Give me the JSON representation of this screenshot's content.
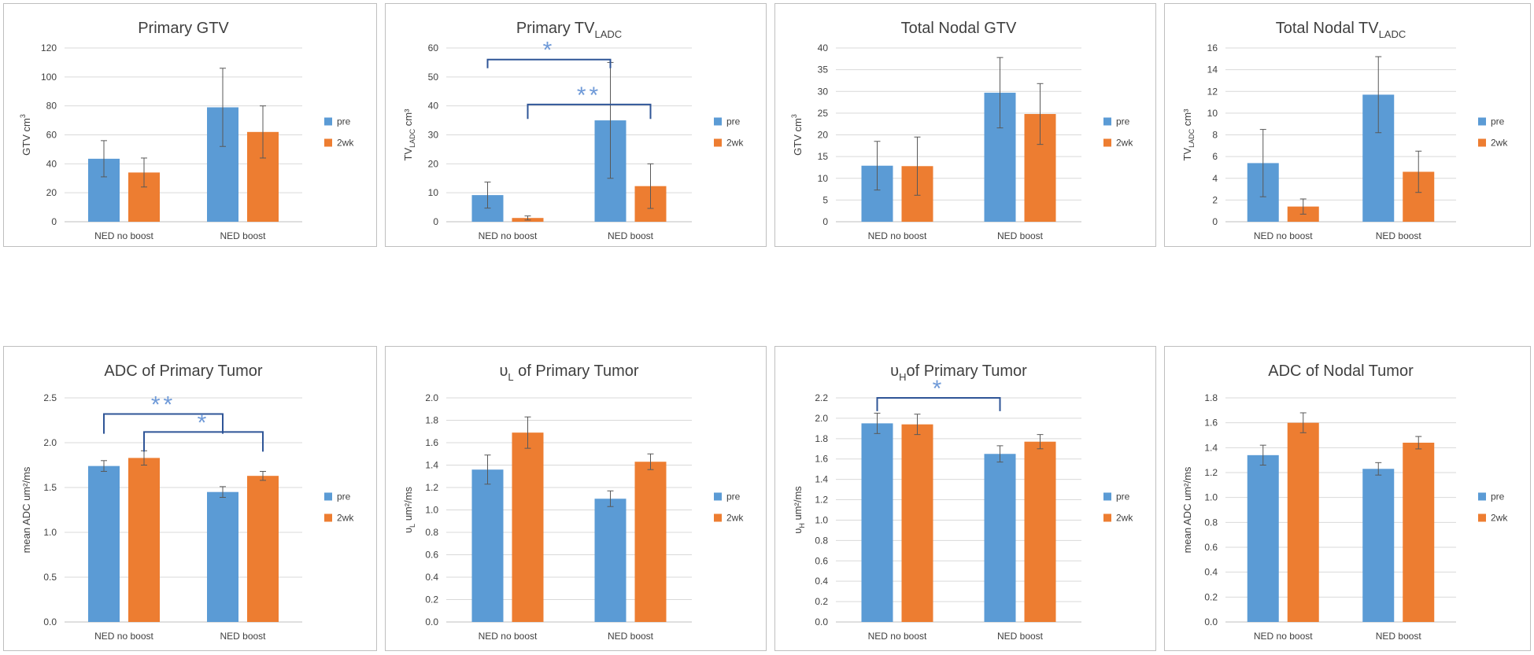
{
  "colors": {
    "pre": "#5B9BD5",
    "two_week": "#ED7D31",
    "bracket": "#2F5597",
    "star": "#6F9AD8",
    "grid": "#D9D9D9",
    "panel_border": "#BFBFBF",
    "axis_text": "#404040"
  },
  "chart_data": [
    {
      "type": "bar",
      "title": {
        "main": "Primary GTV",
        "sub": ""
      },
      "ylabel": {
        "main": "GTV cm",
        "sub": "",
        "sup": "3",
        "tail": ""
      },
      "categories": [
        "NED no boost",
        "NED boost"
      ],
      "series": [
        {
          "name": "pre",
          "values": [
            43.5,
            79
          ],
          "errors": [
            12.5,
            27
          ]
        },
        {
          "name": "2wk",
          "values": [
            34,
            62
          ],
          "errors": [
            10,
            18
          ]
        }
      ],
      "ylim": [
        0,
        120
      ],
      "yticks": [
        0,
        20,
        40,
        60,
        80,
        100,
        120
      ],
      "tick_decimals": 0,
      "legend": "right",
      "brackets": []
    },
    {
      "type": "bar",
      "title": {
        "main": "Primary TV",
        "sub": "LADC"
      },
      "ylabel": {
        "main": "TV",
        "sub": "LADC",
        "sup": "",
        "tail": " cm³"
      },
      "categories": [
        "NED no boost",
        "NED boost"
      ],
      "series": [
        {
          "name": "pre",
          "values": [
            9.2,
            35
          ],
          "errors": [
            4.5,
            20
          ]
        },
        {
          "name": "2wk",
          "values": [
            1.3,
            12.3
          ],
          "errors": [
            0.7,
            7.7
          ]
        }
      ],
      "ylim": [
        0,
        60
      ],
      "yticks": [
        0,
        10,
        20,
        30,
        40,
        50,
        60
      ],
      "tick_decimals": 0,
      "legend": "right",
      "brackets": [
        {
          "from": [
            0,
            "pre"
          ],
          "to": [
            1,
            "pre"
          ],
          "level": 56,
          "drop": 53,
          "stars": "*"
        },
        {
          "from": [
            0,
            "2wk"
          ],
          "to": [
            1,
            "2wk"
          ],
          "level": 40.5,
          "drop": 35.5,
          "stars": "**"
        }
      ]
    },
    {
      "type": "bar",
      "title": {
        "main": "Total Nodal GTV",
        "sub": ""
      },
      "ylabel": {
        "main": "GTV cm",
        "sub": "",
        "sup": "3",
        "tail": ""
      },
      "categories": [
        "NED no boost",
        "NED boost"
      ],
      "series": [
        {
          "name": "pre",
          "values": [
            12.9,
            29.7
          ],
          "errors": [
            5.6,
            8.1
          ]
        },
        {
          "name": "2wk",
          "values": [
            12.8,
            24.8
          ],
          "errors": [
            6.7,
            7
          ]
        }
      ],
      "ylim": [
        0,
        40
      ],
      "yticks": [
        0,
        5,
        10,
        15,
        20,
        25,
        30,
        35,
        40
      ],
      "tick_decimals": 0,
      "legend": "right",
      "brackets": []
    },
    {
      "type": "bar",
      "title": {
        "main": "Total Nodal TV",
        "sub": "LADC"
      },
      "ylabel": {
        "main": "TV",
        "sub": "LADC",
        "sup": "",
        "tail": " cm³"
      },
      "categories": [
        "NED no boost",
        "NED boost"
      ],
      "series": [
        {
          "name": "pre",
          "values": [
            5.4,
            11.7
          ],
          "errors": [
            3.1,
            3.5
          ]
        },
        {
          "name": "2wk",
          "values": [
            1.4,
            4.6
          ],
          "errors": [
            0.7,
            1.9
          ]
        }
      ],
      "ylim": [
        0,
        16
      ],
      "yticks": [
        0,
        2,
        4,
        6,
        8,
        10,
        12,
        14,
        16
      ],
      "tick_decimals": 0,
      "legend": "right",
      "brackets": []
    },
    {
      "type": "bar",
      "title": {
        "main": "ADC of Primary Tumor",
        "sub": ""
      },
      "ylabel": {
        "main": "mean ADC um²/ms",
        "sub": "",
        "sup": "",
        "tail": ""
      },
      "categories": [
        "NED no boost",
        "NED boost"
      ],
      "series": [
        {
          "name": "pre",
          "values": [
            1.74,
            1.45
          ],
          "errors": [
            0.06,
            0.06
          ]
        },
        {
          "name": "2wk",
          "values": [
            1.83,
            1.63
          ],
          "errors": [
            0.08,
            0.05
          ]
        }
      ],
      "ylim": [
        0,
        2.5
      ],
      "yticks": [
        0,
        0.5,
        1,
        1.5,
        2,
        2.5
      ],
      "tick_decimals": 1,
      "legend": "right",
      "brackets": [
        {
          "from": [
            0,
            "pre"
          ],
          "to": [
            1,
            "pre"
          ],
          "level": 2.32,
          "drop": 2.1,
          "stars": "**"
        },
        {
          "from": [
            0,
            "2wk"
          ],
          "to": [
            1,
            "2wk"
          ],
          "level": 2.12,
          "drop": 1.9,
          "stars": "*"
        }
      ]
    },
    {
      "type": "bar",
      "title": {
        "main": "υ",
        "sub": "L",
        "tail": " of Primary Tumor"
      },
      "ylabel": {
        "main": "υ",
        "sub": "L",
        "sup": "",
        "tail": " um²/ms"
      },
      "categories": [
        "NED no boost",
        "NED boost"
      ],
      "series": [
        {
          "name": "pre",
          "values": [
            1.36,
            1.1
          ],
          "errors": [
            0.13,
            0.07
          ]
        },
        {
          "name": "2wk",
          "values": [
            1.69,
            1.43
          ],
          "errors": [
            0.14,
            0.07
          ]
        }
      ],
      "ylim": [
        0,
        2
      ],
      "yticks": [
        0,
        0.2,
        0.4,
        0.6,
        0.8,
        1,
        1.2,
        1.4,
        1.6,
        1.8,
        2
      ],
      "tick_decimals": 1,
      "legend": "right",
      "brackets": []
    },
    {
      "type": "bar",
      "title": {
        "main": "υ",
        "sub": "H",
        "tail": "of Primary Tumor"
      },
      "ylabel": {
        "main": "υ",
        "sub": "H",
        "sup": "",
        "tail": " um²/ms"
      },
      "categories": [
        "NED no boost",
        "NED boost"
      ],
      "series": [
        {
          "name": "pre",
          "values": [
            1.95,
            1.65
          ],
          "errors": [
            0.1,
            0.08
          ]
        },
        {
          "name": "2wk",
          "values": [
            1.94,
            1.77
          ],
          "errors": [
            0.1,
            0.07
          ]
        }
      ],
      "ylim": [
        0,
        2.2
      ],
      "yticks": [
        0,
        0.2,
        0.4,
        0.6,
        0.8,
        1,
        1.2,
        1.4,
        1.6,
        1.8,
        2,
        2.2
      ],
      "tick_decimals": 1,
      "legend": "right",
      "brackets": [
        {
          "from": [
            0,
            "pre"
          ],
          "to": [
            1,
            "pre"
          ],
          "level": 2.2,
          "drop": 2.07,
          "stars": "*"
        }
      ]
    },
    {
      "type": "bar",
      "title": {
        "main": "ADC of Nodal Tumor",
        "sub": ""
      },
      "ylabel": {
        "main": "mean ADC um²/ms",
        "sub": "",
        "sup": "",
        "tail": ""
      },
      "categories": [
        "NED no boost",
        "NED boost"
      ],
      "series": [
        {
          "name": "pre",
          "values": [
            1.34,
            1.23
          ],
          "errors": [
            0.08,
            0.05
          ]
        },
        {
          "name": "2wk",
          "values": [
            1.6,
            1.44
          ],
          "errors": [
            0.08,
            0.05
          ]
        }
      ],
      "ylim": [
        0,
        1.8
      ],
      "yticks": [
        0,
        0.2,
        0.4,
        0.6,
        0.8,
        1,
        1.2,
        1.4,
        1.6,
        1.8
      ],
      "tick_decimals": 1,
      "legend": "right",
      "brackets": []
    }
  ]
}
